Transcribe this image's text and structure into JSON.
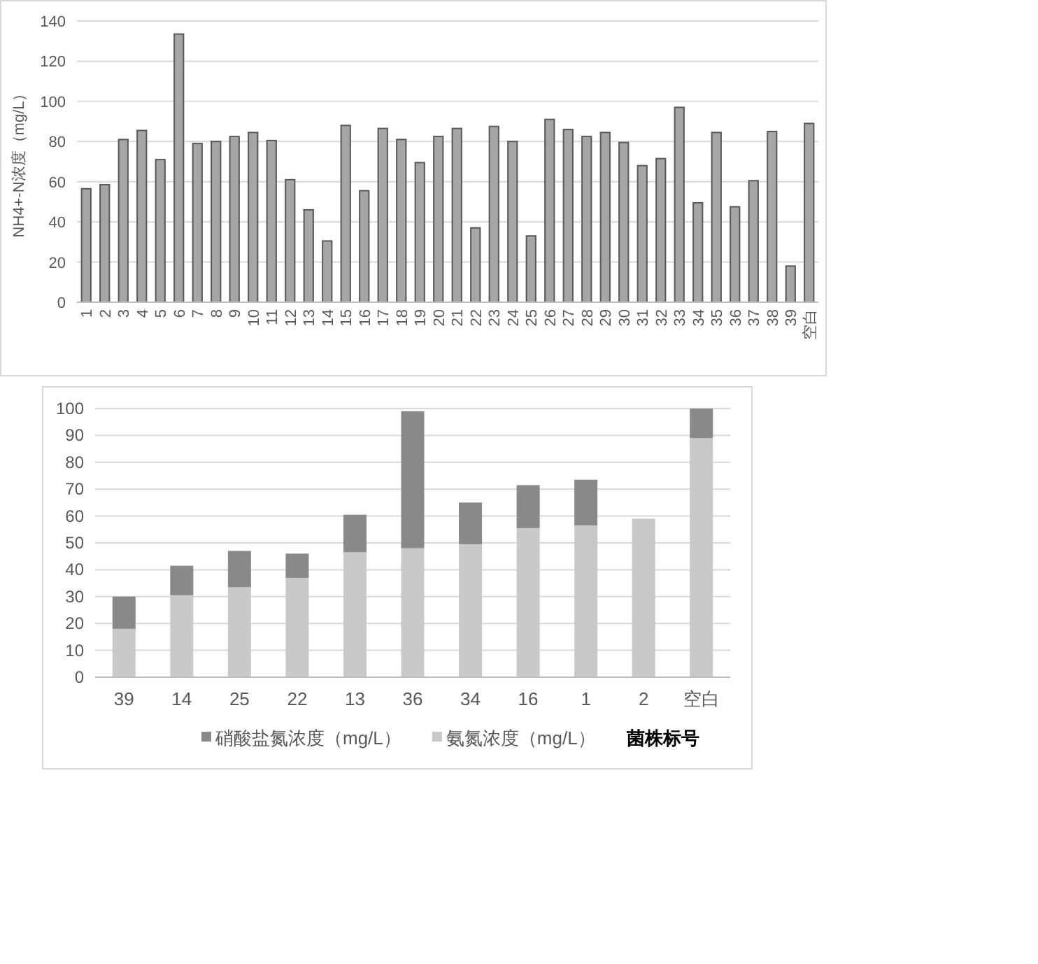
{
  "chart_data": [
    {
      "type": "bar",
      "ylabel": "NH4+-N浓度（mg/L）",
      "categories": [
        "1",
        "2",
        "3",
        "4",
        "5",
        "6",
        "7",
        "8",
        "9",
        "10",
        "11",
        "12",
        "13",
        "14",
        "15",
        "16",
        "17",
        "18",
        "19",
        "20",
        "21",
        "22",
        "23",
        "24",
        "25",
        "26",
        "27",
        "28",
        "29",
        "30",
        "31",
        "32",
        "33",
        "34",
        "35",
        "36",
        "37",
        "38",
        "39",
        "空白"
      ],
      "series": [
        {
          "color": "#a6a6a6",
          "values": [
            56.5,
            58.5,
            81,
            85.5,
            71,
            133.5,
            79,
            80,
            82.5,
            84.5,
            80.5,
            61,
            46,
            30.5,
            88,
            55.5,
            86.5,
            81,
            69.5,
            82.5,
            86.5,
            37,
            87.5,
            80,
            33,
            91,
            86,
            82.5,
            84.5,
            79.5,
            68,
            71.5,
            97,
            49.5,
            84.5,
            47.5,
            60.5,
            85,
            18,
            89
          ]
        }
      ],
      "ylim": [
        0,
        140
      ],
      "yticks": [
        0,
        20,
        40,
        60,
        80,
        100,
        120,
        140
      ],
      "grid": "y"
    },
    {
      "type": "bar",
      "stacked": true,
      "xlabel": "菌株标号",
      "categories": [
        "39",
        "14",
        "25",
        "22",
        "13",
        "36",
        "34",
        "16",
        "1",
        "2",
        "空白"
      ],
      "series": [
        {
          "name": "氨氮浓度（mg/L）",
          "color": "#c9c9c9",
          "values": [
            18,
            30.5,
            33.5,
            37,
            46.5,
            48,
            49.5,
            55.5,
            56.5,
            59,
            89
          ]
        },
        {
          "name": "硝酸盐氮浓度（mg/L）",
          "color": "#898989",
          "values": [
            12,
            11,
            13.5,
            9,
            14,
            51,
            15.5,
            16,
            17,
            0,
            11
          ]
        }
      ],
      "ylim": [
        0,
        100
      ],
      "yticks": [
        0,
        10,
        20,
        30,
        40,
        50,
        60,
        70,
        80,
        90,
        100
      ],
      "grid": "y",
      "legend": "bottom"
    }
  ]
}
